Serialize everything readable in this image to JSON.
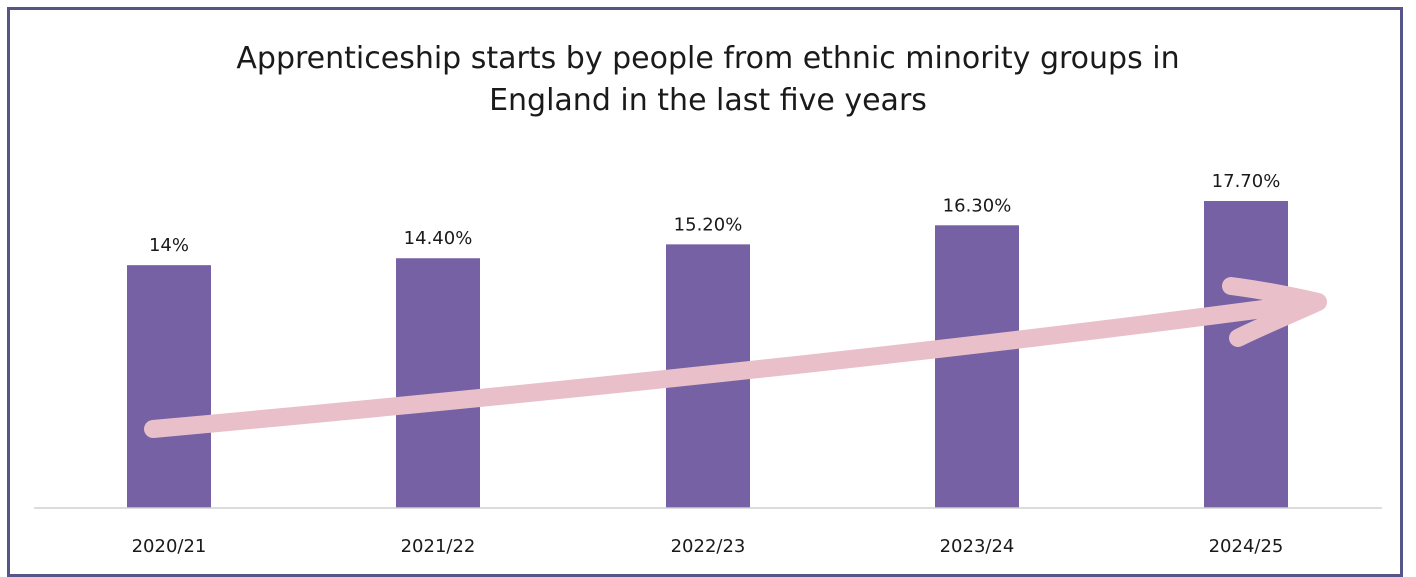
{
  "chart_data": {
    "type": "bar",
    "title_lines": [
      "Apprenticeship starts by people from ethnic minority groups in",
      "England in the last five years"
    ],
    "categories": [
      "2020/21",
      "2021/22",
      "2022/23",
      "2023/24",
      "2024/25"
    ],
    "values": [
      14,
      14.4,
      15.2,
      16.3,
      17.7
    ],
    "data_labels": [
      "14%",
      "14.40%",
      "15.20%",
      "16.30%",
      "17.70%"
    ],
    "ylim": [
      0,
      17.7
    ],
    "grid": false,
    "legend": "none",
    "annotation": "upward trend arrow",
    "colors": {
      "bar": "#7561a4",
      "arrow": "#e9c0ca",
      "frame": "#55558a",
      "axis": "#d0d0d0"
    }
  }
}
